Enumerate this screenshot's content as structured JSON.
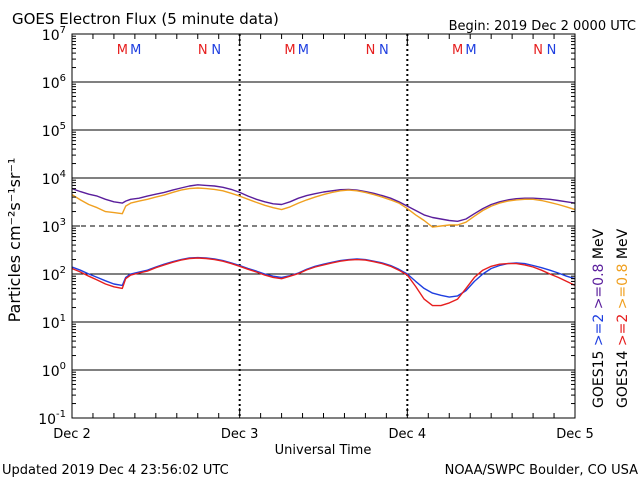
{
  "header": {
    "title": "GOES Electron Flux (5 minute data)",
    "begin": "Begin: 2019 Dec 2 0000 UTC"
  },
  "footer": {
    "updated": "Updated 2019 Dec  4 23:56:02 UTC",
    "credit": "NOAA/SWPC Boulder, CO USA"
  },
  "colors": {
    "g15_high": "#5a1e9c",
    "g14_high": "#f0a020",
    "g15_low": "#1f3fe0",
    "g14_low": "#e61e1e",
    "marker_m": "#e61e1e",
    "marker_n": "#1f3fe0"
  },
  "chart_data": {
    "type": "line",
    "xlabel": "Universal Time",
    "ylabel": "Particles cm⁻²s⁻¹sr⁻¹",
    "xlim": [
      0,
      3
    ],
    "ylim_log10": [
      -1,
      7
    ],
    "log_scale_y": true,
    "x_ticks": [
      "Dec 2",
      "Dec 3",
      "Dec 4",
      "Dec 5"
    ],
    "y_ticks": [
      {
        "base": "10",
        "exp": "7"
      },
      {
        "base": "10",
        "exp": "6"
      },
      {
        "base": "10",
        "exp": "5"
      },
      {
        "base": "10",
        "exp": "4"
      },
      {
        "base": "10",
        "exp": "3"
      },
      {
        "base": "10",
        "exp": "2"
      },
      {
        "base": "10",
        "exp": "1"
      },
      {
        "base": "10",
        "exp": "0"
      },
      {
        "base": "10",
        "exp": "-1"
      }
    ],
    "threshold_log10": 3,
    "markers": [
      {
        "label": "M",
        "x": 0.3,
        "color": "marker_m"
      },
      {
        "label": "M",
        "x": 0.38,
        "color": "marker_n"
      },
      {
        "label": "N",
        "x": 0.78,
        "color": "marker_m"
      },
      {
        "label": "N",
        "x": 0.86,
        "color": "marker_n"
      },
      {
        "label": "M",
        "x": 1.3,
        "color": "marker_m"
      },
      {
        "label": "M",
        "x": 1.38,
        "color": "marker_n"
      },
      {
        "label": "N",
        "x": 1.78,
        "color": "marker_m"
      },
      {
        "label": "N",
        "x": 1.86,
        "color": "marker_n"
      },
      {
        "label": "M",
        "x": 2.3,
        "color": "marker_m"
      },
      {
        "label": "M",
        "x": 2.38,
        "color": "marker_n"
      },
      {
        "label": "N",
        "x": 2.78,
        "color": "marker_m"
      },
      {
        "label": "N",
        "x": 2.86,
        "color": "marker_n"
      }
    ],
    "legend": {
      "placement": "right",
      "columns": [
        {
          "sat": "GOES15",
          "low": ">=2",
          "high": ">=0.8",
          "unit": "MeV",
          "low_color": "g15_low",
          "high_color": "g15_high"
        },
        {
          "sat": "GOES14",
          "low": ">=2",
          "high": ">=0.8",
          "unit": "MeV",
          "low_color": "g14_low",
          "high_color": "g14_high"
        }
      ]
    },
    "series": [
      {
        "name": "GOES15 >=0.8 MeV",
        "color": "g15_high",
        "x": [
          0,
          0.05,
          0.1,
          0.15,
          0.2,
          0.25,
          0.3,
          0.32,
          0.35,
          0.4,
          0.45,
          0.5,
          0.55,
          0.6,
          0.65,
          0.7,
          0.75,
          0.8,
          0.85,
          0.9,
          0.95,
          1.0,
          1.05,
          1.1,
          1.15,
          1.2,
          1.25,
          1.3,
          1.35,
          1.4,
          1.45,
          1.5,
          1.55,
          1.6,
          1.65,
          1.7,
          1.75,
          1.8,
          1.85,
          1.9,
          1.95,
          2.0,
          2.05,
          2.1,
          2.15,
          2.2,
          2.25,
          2.3,
          2.35,
          2.4,
          2.45,
          2.5,
          2.55,
          2.6,
          2.65,
          2.7,
          2.75,
          2.8,
          2.85,
          2.9,
          2.95,
          3.0
        ],
        "y": [
          6000,
          5200,
          4600,
          4200,
          3600,
          3200,
          3000,
          3300,
          3600,
          3800,
          4200,
          4600,
          5000,
          5600,
          6200,
          6800,
          7200,
          7000,
          6800,
          6400,
          5800,
          5000,
          4200,
          3600,
          3200,
          2900,
          2800,
          3200,
          3800,
          4300,
          4700,
          5100,
          5400,
          5700,
          5800,
          5600,
          5200,
          4800,
          4300,
          3800,
          3200,
          2600,
          2100,
          1700,
          1500,
          1400,
          1300,
          1250,
          1400,
          1800,
          2300,
          2800,
          3200,
          3500,
          3700,
          3800,
          3800,
          3700,
          3600,
          3400,
          3200,
          3000
        ]
      },
      {
        "name": "GOES14 >=0.8 MeV",
        "color": "g14_high",
        "x": [
          0,
          0.05,
          0.1,
          0.15,
          0.2,
          0.25,
          0.3,
          0.32,
          0.35,
          0.4,
          0.45,
          0.5,
          0.55,
          0.6,
          0.65,
          0.7,
          0.75,
          0.8,
          0.85,
          0.9,
          0.95,
          1.0,
          1.05,
          1.1,
          1.15,
          1.2,
          1.25,
          1.3,
          1.35,
          1.4,
          1.45,
          1.5,
          1.55,
          1.6,
          1.65,
          1.7,
          1.75,
          1.8,
          1.85,
          1.9,
          1.95,
          2.0,
          2.05,
          2.1,
          2.15,
          2.2,
          2.25,
          2.3,
          2.35,
          2.4,
          2.45,
          2.5,
          2.55,
          2.6,
          2.65,
          2.7,
          2.75,
          2.8,
          2.85,
          2.9,
          2.95,
          3.0
        ],
        "y": [
          4500,
          3500,
          2800,
          2400,
          2000,
          1900,
          1800,
          2600,
          3000,
          3300,
          3600,
          4000,
          4400,
          5000,
          5600,
          6000,
          6200,
          6000,
          5800,
          5400,
          4800,
          4200,
          3600,
          3100,
          2700,
          2400,
          2200,
          2500,
          3000,
          3500,
          4000,
          4500,
          5000,
          5400,
          5600,
          5400,
          5000,
          4500,
          4000,
          3500,
          3000,
          2300,
          1700,
          1300,
          950,
          1000,
          1050,
          1050,
          1200,
          1600,
          2100,
          2600,
          3000,
          3300,
          3500,
          3600,
          3600,
          3400,
          3100,
          2800,
          2500,
          2200
        ]
      },
      {
        "name": "GOES15 >=2 MeV",
        "color": "g15_low",
        "x": [
          0,
          0.05,
          0.1,
          0.15,
          0.2,
          0.25,
          0.3,
          0.32,
          0.35,
          0.4,
          0.45,
          0.5,
          0.55,
          0.6,
          0.65,
          0.7,
          0.75,
          0.8,
          0.85,
          0.9,
          0.95,
          1.0,
          1.05,
          1.1,
          1.15,
          1.2,
          1.25,
          1.3,
          1.35,
          1.4,
          1.45,
          1.5,
          1.55,
          1.6,
          1.65,
          1.7,
          1.75,
          1.8,
          1.85,
          1.9,
          1.95,
          2.0,
          2.05,
          2.1,
          2.15,
          2.2,
          2.25,
          2.3,
          2.35,
          2.4,
          2.45,
          2.5,
          2.55,
          2.6,
          2.65,
          2.7,
          2.75,
          2.8,
          2.85,
          2.9,
          2.95,
          3.0
        ],
        "y": [
          140,
          120,
          100,
          85,
          72,
          62,
          58,
          85,
          100,
          110,
          120,
          140,
          160,
          180,
          200,
          215,
          220,
          215,
          205,
          190,
          170,
          150,
          130,
          115,
          100,
          90,
          85,
          92,
          105,
          125,
          145,
          160,
          175,
          190,
          200,
          205,
          200,
          185,
          170,
          150,
          125,
          100,
          70,
          50,
          40,
          36,
          33,
          35,
          45,
          70,
          100,
          130,
          150,
          165,
          170,
          165,
          150,
          135,
          120,
          105,
          90,
          80
        ]
      },
      {
        "name": "GOES14 >=2 MeV",
        "color": "g14_low",
        "x": [
          0,
          0.05,
          0.1,
          0.15,
          0.2,
          0.25,
          0.3,
          0.32,
          0.35,
          0.4,
          0.45,
          0.5,
          0.55,
          0.6,
          0.65,
          0.7,
          0.75,
          0.8,
          0.85,
          0.9,
          0.95,
          1.0,
          1.05,
          1.1,
          1.15,
          1.2,
          1.25,
          1.3,
          1.35,
          1.4,
          1.45,
          1.5,
          1.55,
          1.6,
          1.65,
          1.7,
          1.75,
          1.8,
          1.85,
          1.9,
          1.95,
          2.0,
          2.05,
          2.1,
          2.15,
          2.2,
          2.25,
          2.3,
          2.35,
          2.4,
          2.45,
          2.5,
          2.55,
          2.6,
          2.65,
          2.7,
          2.75,
          2.8,
          2.85,
          2.9,
          2.95,
          3.0
        ],
        "y": [
          130,
          110,
          90,
          75,
          62,
          54,
          50,
          80,
          95,
          105,
          115,
          135,
          155,
          175,
          195,
          210,
          215,
          210,
          200,
          185,
          165,
          145,
          125,
          110,
          95,
          85,
          80,
          90,
          102,
          122,
          140,
          155,
          170,
          185,
          195,
          200,
          195,
          180,
          165,
          145,
          120,
          95,
          55,
          30,
          22,
          22,
          25,
          30,
          50,
          85,
          120,
          145,
          160,
          165,
          165,
          155,
          140,
          120,
          100,
          85,
          70,
          58
        ]
      }
    ]
  }
}
